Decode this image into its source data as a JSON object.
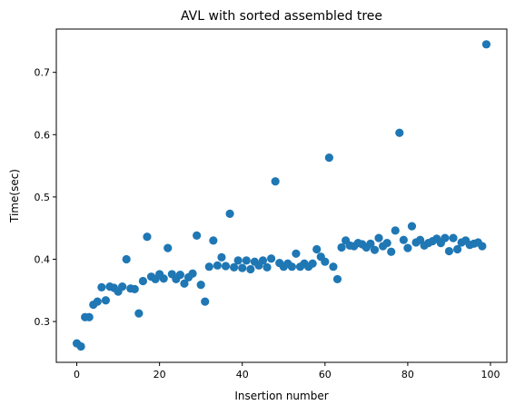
{
  "chart_data": {
    "type": "scatter",
    "title": "AVL with sorted assembled tree",
    "xlabel": "Insertion number",
    "ylabel": "Time(sec)",
    "xlim": [
      -4.95,
      103.95
    ],
    "ylim": [
      0.2345,
      0.7695
    ],
    "xticks": [
      0,
      20,
      40,
      60,
      80,
      100
    ],
    "yticks": [
      0.3,
      0.4,
      0.5,
      0.6,
      0.7
    ],
    "xtick_labels": [
      "0",
      "20",
      "40",
      "60",
      "80",
      "100"
    ],
    "ytick_labels": [
      "0.3",
      "0.4",
      "0.5",
      "0.6",
      "0.7"
    ],
    "grid": false,
    "legend": "none",
    "series": [
      {
        "color": "#1f77b4",
        "x": [
          0,
          1,
          2,
          3,
          4,
          5,
          6,
          7,
          8,
          9,
          10,
          11,
          12,
          13,
          14,
          15,
          16,
          17,
          18,
          19,
          20,
          21,
          22,
          23,
          24,
          25,
          26,
          27,
          28,
          29,
          30,
          31,
          32,
          33,
          34,
          35,
          36,
          37,
          38,
          39,
          40,
          41,
          42,
          43,
          44,
          45,
          46,
          47,
          48,
          49,
          50,
          51,
          52,
          53,
          54,
          55,
          56,
          57,
          58,
          59,
          60,
          61,
          62,
          63,
          64,
          65,
          66,
          67,
          68,
          69,
          70,
          71,
          72,
          73,
          74,
          75,
          76,
          77,
          78,
          79,
          80,
          81,
          82,
          83,
          84,
          85,
          86,
          87,
          88,
          89,
          90,
          91,
          92,
          93,
          94,
          95,
          96,
          97,
          98,
          99
        ],
        "y": [
          0.265,
          0.26,
          0.307,
          0.307,
          0.327,
          0.332,
          0.355,
          0.334,
          0.356,
          0.354,
          0.348,
          0.356,
          0.4,
          0.353,
          0.352,
          0.313,
          0.365,
          0.436,
          0.372,
          0.368,
          0.376,
          0.369,
          0.418,
          0.376,
          0.368,
          0.375,
          0.361,
          0.371,
          0.377,
          0.438,
          0.359,
          0.332,
          0.388,
          0.43,
          0.39,
          0.403,
          0.389,
          0.473,
          0.387,
          0.398,
          0.386,
          0.398,
          0.384,
          0.396,
          0.39,
          0.398,
          0.387,
          0.401,
          0.525,
          0.394,
          0.388,
          0.393,
          0.388,
          0.409,
          0.388,
          0.393,
          0.388,
          0.393,
          0.416,
          0.404,
          0.396,
          0.563,
          0.388,
          0.368,
          0.419,
          0.43,
          0.422,
          0.421,
          0.426,
          0.424,
          0.419,
          0.425,
          0.415,
          0.434,
          0.421,
          0.426,
          0.412,
          0.446,
          0.603,
          0.431,
          0.418,
          0.453,
          0.427,
          0.431,
          0.422,
          0.426,
          0.429,
          0.433,
          0.426,
          0.434,
          0.413,
          0.434,
          0.416,
          0.427,
          0.43,
          0.423,
          0.425,
          0.427,
          0.421,
          0.745
        ]
      }
    ]
  }
}
